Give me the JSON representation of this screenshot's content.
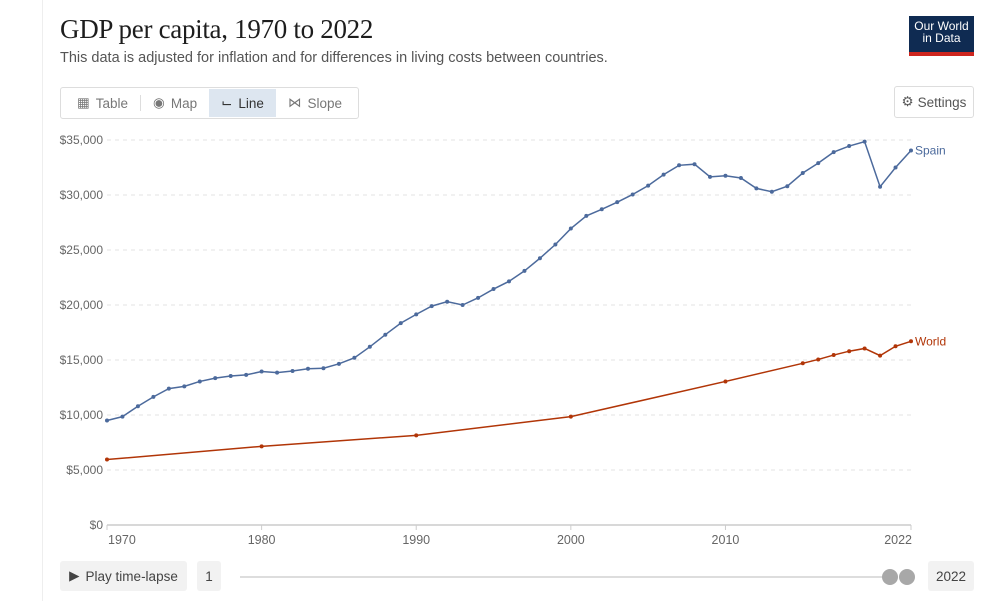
{
  "header": {
    "title": "GDP per capita, 1970 to 2022",
    "subtitle": "This data is adjusted for inflation and for differences in living costs between countries.",
    "logo": "Our World in Data",
    "logo_line1": "Our World",
    "logo_line2": "in Data"
  },
  "tabs": [
    {
      "label": "Table",
      "icon": "table-icon"
    },
    {
      "label": "Map",
      "icon": "globe-icon"
    },
    {
      "label": "Line",
      "icon": "line-chart-icon",
      "active": true
    },
    {
      "label": "Slope",
      "icon": "slope-icon"
    }
  ],
  "settings_label": "Settings",
  "timeline": {
    "play_label": "Play time-lapse",
    "start_value": "1",
    "end_value": "2022"
  },
  "chart_data": {
    "type": "line",
    "title": "GDP per capita, 1970 to 2022",
    "subtitle": "This data is adjusted for inflation and for differences in living costs between countries.",
    "xlim": [
      1970,
      2022
    ],
    "ylim": [
      0,
      35000
    ],
    "x_ticks": [
      "1970",
      "1980",
      "1990",
      "2000",
      "2010",
      "2022"
    ],
    "y_ticks": [
      "$0",
      "$5,000",
      "$10,000",
      "$15,000",
      "$20,000",
      "$25,000",
      "$30,000",
      "$35,000"
    ],
    "grid": "horizontal dashed",
    "legend": "line-end labels",
    "series": [
      {
        "name": "Spain",
        "color": "#4c6a9c",
        "x": [
          1970,
          1971,
          1972,
          1973,
          1974,
          1975,
          1976,
          1977,
          1978,
          1979,
          1980,
          1981,
          1982,
          1983,
          1984,
          1985,
          1986,
          1987,
          1988,
          1989,
          1990,
          1991,
          1992,
          1993,
          1994,
          1995,
          1996,
          1997,
          1998,
          1999,
          2000,
          2001,
          2002,
          2003,
          2004,
          2005,
          2006,
          2007,
          2008,
          2009,
          2010,
          2011,
          2012,
          2013,
          2014,
          2015,
          2016,
          2017,
          2018,
          2019,
          2020,
          2021,
          2022
        ],
        "values": [
          9500,
          9850,
          10800,
          11650,
          12400,
          12600,
          13050,
          13350,
          13550,
          13650,
          13950,
          13850,
          14000,
          14200,
          14250,
          14650,
          15200,
          16200,
          17300,
          18350,
          19150,
          19900,
          20300,
          20000,
          20650,
          21450,
          22150,
          23100,
          24250,
          25500,
          26950,
          28100,
          28700,
          29350,
          30050,
          30850,
          31850,
          32700,
          32800,
          31650,
          31750,
          31550,
          30600,
          30300,
          30800,
          32000,
          32900,
          33900,
          34450,
          34850,
          30750,
          32500,
          34050
        ]
      },
      {
        "name": "World",
        "color": "#b13507",
        "x": [
          1970,
          1980,
          1990,
          2000,
          2010,
          2015,
          2016,
          2017,
          2018,
          2019,
          2020,
          2021,
          2022
        ],
        "values": [
          5950,
          7150,
          8150,
          9850,
          13050,
          14700,
          15050,
          15450,
          15800,
          16050,
          15400,
          16250,
          16700
        ]
      }
    ]
  }
}
